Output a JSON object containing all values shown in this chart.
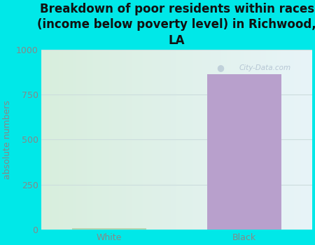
{
  "categories": [
    "White",
    "Black"
  ],
  "values": [
    7,
    862
  ],
  "bar_colors": [
    "#b8d4b0",
    "#b8a0cc"
  ],
  "title": "Breakdown of poor residents within races\n(income below poverty level) in Richwood,\nLA",
  "ylabel": "absolute numbers",
  "ylim": [
    0,
    1000
  ],
  "yticks": [
    0,
    250,
    500,
    750,
    1000
  ],
  "background_color": "#00e8e8",
  "plot_bg_left": "#d8eedd",
  "plot_bg_right": "#e8f4f8",
  "title_fontsize": 12,
  "ylabel_fontsize": 9,
  "tick_fontsize": 9,
  "grid_color": "#ccdddd",
  "ylabel_color": "#888888",
  "tick_color": "#888888",
  "title_color": "#111111",
  "watermark": "City-Data.com"
}
